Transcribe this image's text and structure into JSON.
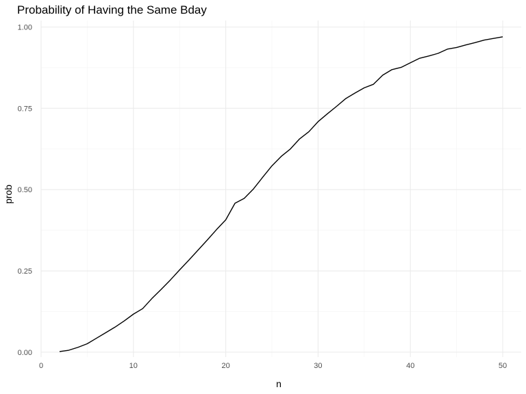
{
  "chart_data": {
    "type": "line",
    "title": "Probability of Having the Same Bday",
    "xlabel": "n",
    "ylabel": "prob",
    "xlim": [
      0,
      52
    ],
    "ylim": [
      -0.015,
      1.02
    ],
    "grid": true,
    "x_ticks": [
      0,
      10,
      20,
      30,
      40,
      50
    ],
    "x_tick_labels": [
      "0",
      "10",
      "20",
      "30",
      "40",
      "50"
    ],
    "x_minor_ticks": [
      5,
      15,
      25,
      35,
      45
    ],
    "y_ticks": [
      0,
      0.25,
      0.5,
      0.75,
      1
    ],
    "y_tick_labels": [
      "0.00",
      "0.25",
      "0.50",
      "0.75",
      "1.00"
    ],
    "y_minor_ticks": [
      0.125,
      0.375,
      0.625,
      0.875
    ],
    "line_color": "#000000",
    "x": [
      2,
      3,
      4,
      5,
      6,
      7,
      8,
      9,
      10,
      11,
      12,
      13,
      14,
      15,
      16,
      17,
      18,
      19,
      20,
      21,
      22,
      23,
      24,
      25,
      26,
      27,
      28,
      29,
      30,
      31,
      32,
      33,
      34,
      35,
      36,
      37,
      38,
      39,
      40,
      41,
      42,
      43,
      44,
      45,
      46,
      47,
      48,
      49,
      50
    ],
    "y": [
      0.002,
      0.006,
      0.015,
      0.026,
      0.043,
      0.06,
      0.077,
      0.096,
      0.117,
      0.134,
      0.165,
      0.193,
      0.222,
      0.253,
      0.283,
      0.314,
      0.345,
      0.377,
      0.407,
      0.458,
      0.473,
      0.502,
      0.538,
      0.573,
      0.602,
      0.625,
      0.656,
      0.678,
      0.709,
      0.733,
      0.756,
      0.78,
      0.797,
      0.813,
      0.824,
      0.852,
      0.869,
      0.876,
      0.89,
      0.904,
      0.911,
      0.919,
      0.932,
      0.937,
      0.945,
      0.952,
      0.96,
      0.965,
      0.97
    ]
  }
}
